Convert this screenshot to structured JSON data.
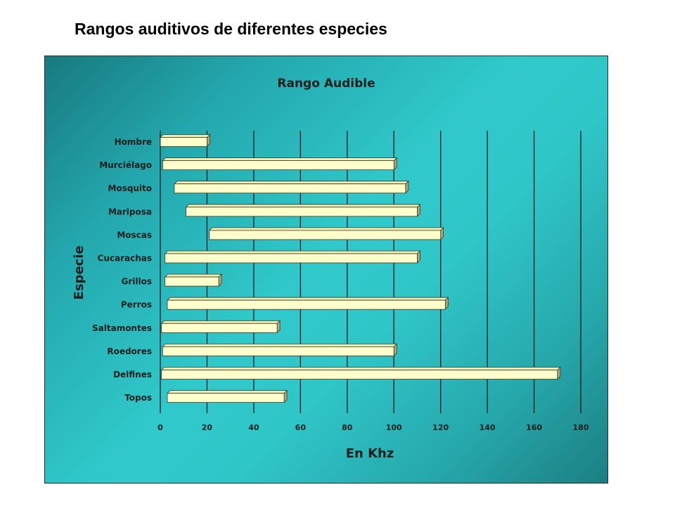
{
  "page": {
    "title": "Rangos auditivos de diferentes especies"
  },
  "chart_data": {
    "type": "bar",
    "orientation": "horizontal",
    "style": "floating range bars (3D)",
    "title": "Rango Audible",
    "xlabel": "En Khz",
    "ylabel": "Especie",
    "xlim": [
      0,
      180
    ],
    "xticks": [
      0,
      20,
      40,
      60,
      80,
      100,
      120,
      140,
      160,
      180
    ],
    "grid": "vertical",
    "bar_color": "#ffffcc",
    "background": "teal gradient",
    "categories": [
      "Hombre",
      "Murciélago",
      "Mosquito",
      "Mariposa",
      "Moscas",
      "Cucarachas",
      "Grillos",
      "Perros",
      "Saltamontes",
      "Roedores",
      "Delfines",
      "Topos"
    ],
    "series": [
      {
        "ranges": [
          [
            0.02,
            20
          ],
          [
            1,
            100
          ],
          [
            6,
            105
          ],
          [
            11,
            110
          ],
          [
            21,
            120
          ],
          [
            2,
            110
          ],
          [
            2,
            25
          ],
          [
            3,
            122
          ],
          [
            0.5,
            50
          ],
          [
            1,
            100
          ],
          [
            0.5,
            170
          ],
          [
            3,
            53
          ]
        ]
      }
    ]
  }
}
